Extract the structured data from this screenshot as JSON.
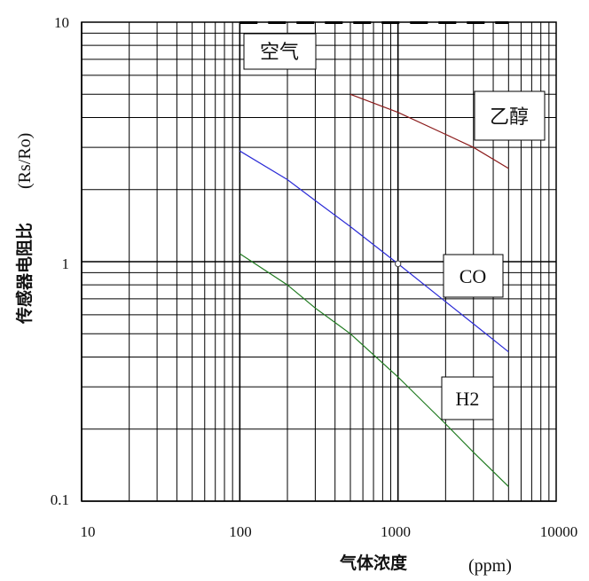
{
  "chart_data": {
    "type": "line",
    "xscale": "log",
    "yscale": "log",
    "xlim": [
      10,
      10000
    ],
    "ylim": [
      0.1,
      10
    ],
    "x_ticks": [
      "10",
      "100",
      "1000",
      "10000"
    ],
    "y_ticks": [
      "0.1",
      "1",
      "10"
    ],
    "xlabel": "气体浓度",
    "xlabel_unit": "(ppm)",
    "ylabel": "传感器电阻比",
    "ylabel_unit": "(Rs/Ro)",
    "grid": true,
    "series": [
      {
        "name": "空气",
        "color": "#000000",
        "style": "dashed",
        "x": [
          100,
          5000
        ],
        "y": [
          10,
          10
        ]
      },
      {
        "name": "乙醇",
        "color": "#8b1a1a",
        "style": "solid",
        "x": [
          500,
          1000,
          2000,
          3000,
          5000
        ],
        "y": [
          5.0,
          4.2,
          3.4,
          3.0,
          2.45
        ]
      },
      {
        "name": "CO",
        "color": "#2b2bd6",
        "style": "solid",
        "x": [
          100,
          200,
          300,
          500,
          1000,
          2000,
          3000,
          5000
        ],
        "y": [
          2.9,
          2.2,
          1.8,
          1.4,
          0.98,
          0.68,
          0.55,
          0.42
        ]
      },
      {
        "name": "H2",
        "color": "#1f7a1f",
        "style": "solid",
        "x": [
          100,
          200,
          300,
          500,
          1000,
          2000,
          3000,
          5000
        ],
        "y": [
          1.08,
          0.8,
          0.64,
          0.5,
          0.33,
          0.21,
          0.16,
          0.115
        ]
      }
    ],
    "reference_point": {
      "x": 1000,
      "y": 0.98
    }
  }
}
